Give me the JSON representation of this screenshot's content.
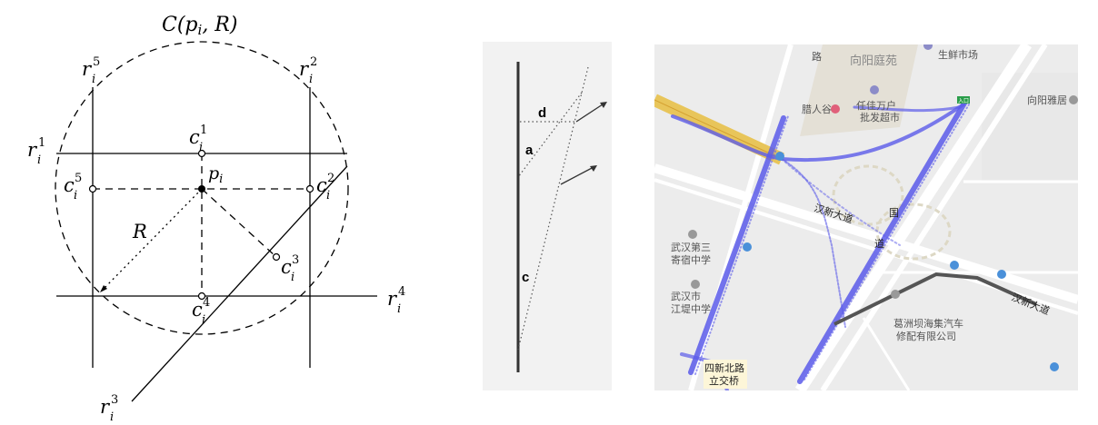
{
  "figure_a": {
    "circle_label": "C(p",
    "circle_label_sub": "i",
    "circle_label_tail": ", R)",
    "center_label": "p",
    "center_sub": "i",
    "radius_label": "R",
    "r_base": "r",
    "c_base": "c",
    "sub_i": "i",
    "lines": [
      {
        "id": "r1",
        "sup": "1"
      },
      {
        "id": "r2",
        "sup": "2"
      },
      {
        "id": "r3",
        "sup": "3"
      },
      {
        "id": "r4",
        "sup": "4"
      },
      {
        "id": "r5",
        "sup": "5"
      }
    ],
    "points": [
      {
        "id": "c1",
        "sup": "1"
      },
      {
        "id": "c2",
        "sup": "2"
      },
      {
        "id": "c3",
        "sup": "3"
      },
      {
        "id": "c4",
        "sup": "4"
      },
      {
        "id": "c5",
        "sup": "5"
      }
    ]
  },
  "figure_b": {
    "labels": [
      "d",
      "a",
      "c"
    ],
    "background": "#f2f2f2"
  },
  "figure_c": {
    "background": "#ececec",
    "trace_color": "#5b5bea",
    "route_color": "#555555",
    "labels": {
      "poi_top": "向阳庭苑",
      "poi_market1": "生鲜市场",
      "poi_market2a": "任佳万户",
      "poi_market2b": "批发超市",
      "poi_shop": "腊人谷",
      "poi_right": "向阳雅居",
      "school_a": "武汉第三",
      "school_b": "寄宿中学",
      "road1": "汉新大道",
      "road2": "国",
      "road3": "道",
      "road4": "汉新大道",
      "school2_a": "武汉市",
      "school2_b": "江堤中学",
      "company_a": "葛洲坝海集汽车",
      "company_b": "修配有限公司",
      "bridge_a": "四新北路",
      "bridge_b": "立交桥",
      "poi_road_top": "路",
      "entrance": "入口"
    }
  }
}
